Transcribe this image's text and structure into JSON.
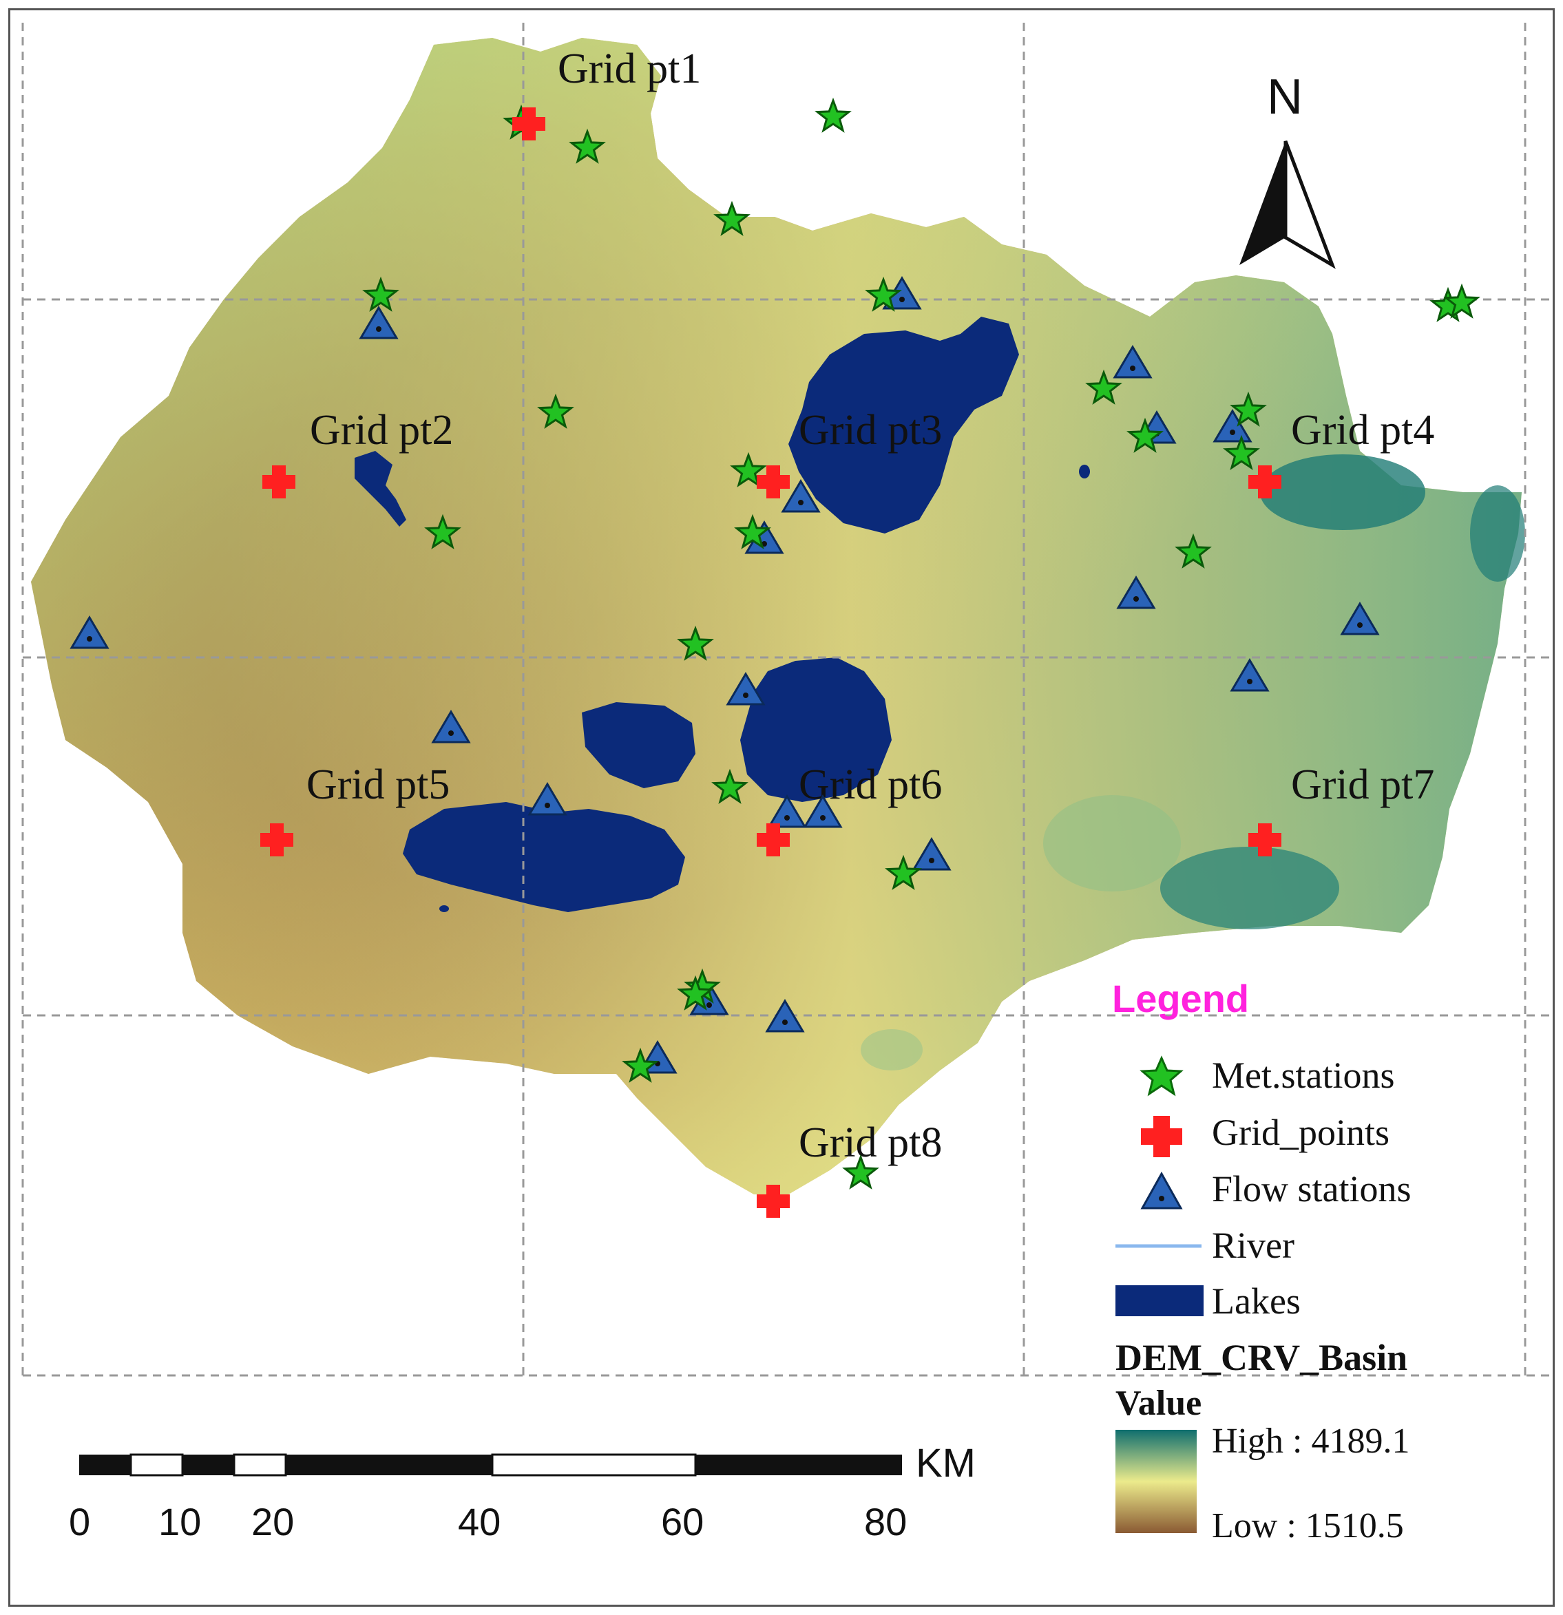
{
  "map": {
    "north_label": "N",
    "grid_labels": [
      "Grid pt1",
      "Grid pt2",
      "Grid pt3",
      "Grid pt4",
      "Grid pt5",
      "Grid pt6",
      "Grid pt7",
      "Grid pt8"
    ]
  },
  "legend": {
    "title": "Legend",
    "items": [
      {
        "label": "Met.stations",
        "icon": "green-star-icon",
        "color": "#22c122"
      },
      {
        "label": "Grid_points",
        "icon": "red-cross-icon",
        "color": "#ff2020"
      },
      {
        "label": "Flow stations",
        "icon": "blue-triangle-icon",
        "color": "#2a63b8"
      },
      {
        "label": "River",
        "icon": "river-line-icon",
        "color": "#8ab8ee"
      },
      {
        "label": "Lakes",
        "icon": "lake-patch-icon",
        "color": "#0b2a7a"
      }
    ],
    "dem_title": "DEM_CRV_Basin",
    "value_label": "Value",
    "high_label": "High : 4189.1",
    "low_label": "Low : 1510.5",
    "ramp_colors": [
      "#0f6e6e",
      "#eceb8c",
      "#8a5a33"
    ]
  },
  "scale_bar": {
    "unit": "KM",
    "ticks": [
      "0",
      "10",
      "20",
      "40",
      "60",
      "80"
    ]
  }
}
